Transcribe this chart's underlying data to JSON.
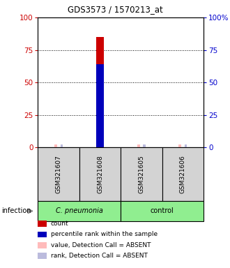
{
  "title": "GDS3573 / 1570213_at",
  "samples": [
    "GSM321607",
    "GSM321608",
    "GSM321605",
    "GSM321606"
  ],
  "count_values": [
    0,
    85,
    0,
    0
  ],
  "percentile_values": [
    0,
    62,
    0,
    0
  ],
  "absent_value_flags": [
    true,
    false,
    true,
    true
  ],
  "absent_rank_flags": [
    true,
    false,
    true,
    true
  ],
  "ylim": [
    0,
    100
  ],
  "left_yticks": [
    0,
    25,
    50,
    75,
    100
  ],
  "right_yticks": [
    0,
    25,
    50,
    75,
    100
  ],
  "left_ycolor": "#cc0000",
  "right_ycolor": "#0000cc",
  "count_color": "#cc0000",
  "percentile_color": "#0000bb",
  "absent_value_color": "#ffbbbb",
  "absent_rank_color": "#bbbbdd",
  "legend_items": [
    {
      "label": "count",
      "color": "#cc0000"
    },
    {
      "label": "percentile rank within the sample",
      "color": "#0000bb"
    },
    {
      "label": "value, Detection Call = ABSENT",
      "color": "#ffbbbb"
    },
    {
      "label": "rank, Detection Call = ABSENT",
      "color": "#bbbbdd"
    }
  ],
  "infection_label": "infection",
  "background_color": "#ffffff",
  "plot_bg_color": "#ffffff",
  "sample_box_color": "#d3d3d3",
  "cpneumonia_color": "#90ee90",
  "control_color": "#90ee90",
  "bar_width": 0.18
}
